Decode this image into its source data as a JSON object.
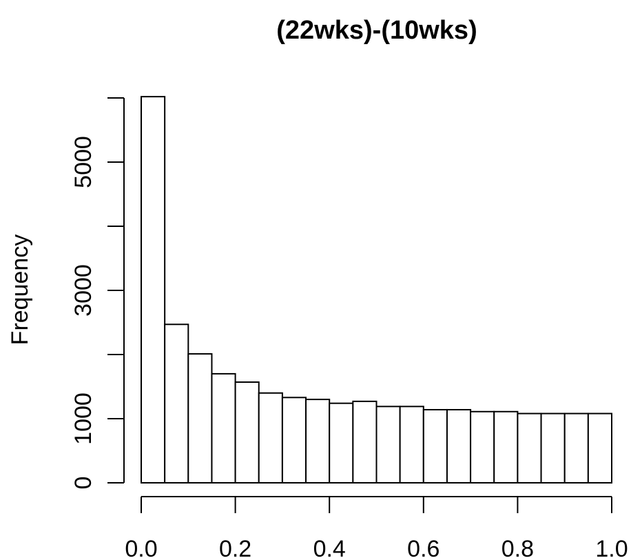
{
  "chart_data": {
    "type": "bar",
    "title": "(22wks)-(10wks)",
    "xlabel": "",
    "ylabel": "Frequency",
    "xlim": [
      0,
      1
    ],
    "ylim": [
      0,
      6000
    ],
    "bin_width": 0.05,
    "x_ticks": [
      "0.0",
      "0.2",
      "0.4",
      "0.6",
      "0.8",
      "1.0"
    ],
    "y_ticks": [
      "0",
      "1000",
      "3000",
      "5000"
    ],
    "bins": [
      {
        "start": 0.0,
        "end": 0.05,
        "count": 6020
      },
      {
        "start": 0.05,
        "end": 0.1,
        "count": 2470
      },
      {
        "start": 0.1,
        "end": 0.15,
        "count": 2010
      },
      {
        "start": 0.15,
        "end": 0.2,
        "count": 1700
      },
      {
        "start": 0.2,
        "end": 0.25,
        "count": 1570
      },
      {
        "start": 0.25,
        "end": 0.3,
        "count": 1400
      },
      {
        "start": 0.3,
        "end": 0.35,
        "count": 1330
      },
      {
        "start": 0.35,
        "end": 0.4,
        "count": 1300
      },
      {
        "start": 0.4,
        "end": 0.45,
        "count": 1240
      },
      {
        "start": 0.45,
        "end": 0.5,
        "count": 1270
      },
      {
        "start": 0.5,
        "end": 0.55,
        "count": 1190
      },
      {
        "start": 0.55,
        "end": 0.6,
        "count": 1190
      },
      {
        "start": 0.6,
        "end": 0.65,
        "count": 1140
      },
      {
        "start": 0.65,
        "end": 0.7,
        "count": 1140
      },
      {
        "start": 0.7,
        "end": 0.75,
        "count": 1110
      },
      {
        "start": 0.75,
        "end": 0.8,
        "count": 1110
      },
      {
        "start": 0.8,
        "end": 0.85,
        "count": 1080
      },
      {
        "start": 0.85,
        "end": 0.9,
        "count": 1080
      },
      {
        "start": 0.9,
        "end": 0.95,
        "count": 1080
      },
      {
        "start": 0.95,
        "end": 1.0,
        "count": 1080
      }
    ],
    "grid": false,
    "colors": {
      "bar_fill": "#ffffff",
      "bar_stroke": "#000000"
    }
  }
}
